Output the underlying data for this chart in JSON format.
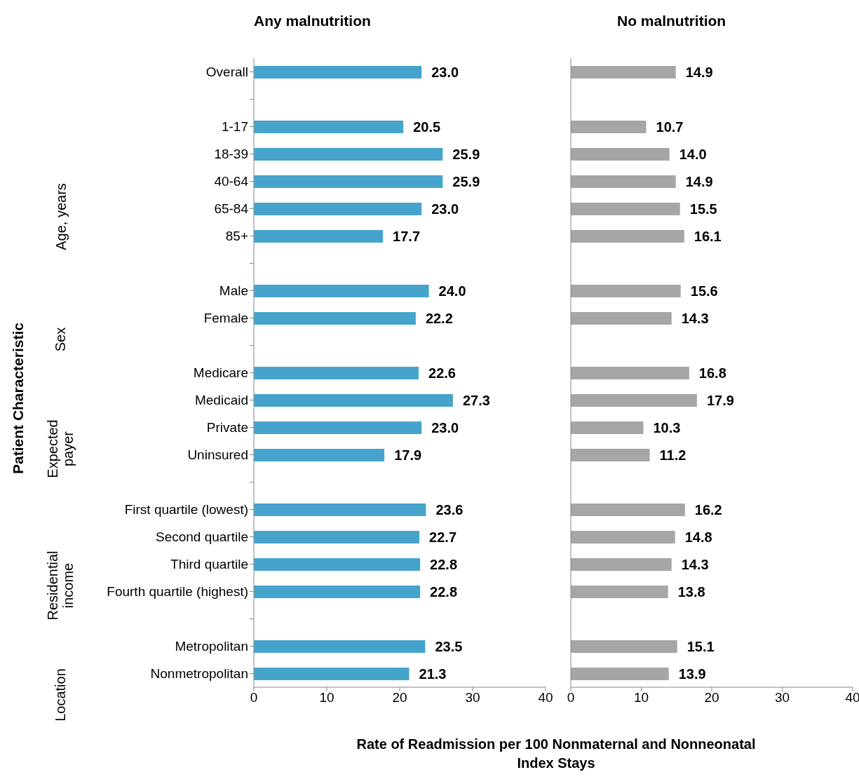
{
  "chart_data": [
    {
      "type": "bar",
      "orientation": "horizontal",
      "title": "Any malnutrition",
      "ylabel": "Patient Characteristic",
      "categories": [
        "Overall",
        null,
        "1-17",
        "18-39",
        "40-64",
        "65-84",
        "85+",
        null,
        "Male",
        "Female",
        null,
        "Medicare",
        "Medicaid",
        "Private",
        "Uninsured",
        null,
        "First quartile (lowest)",
        "Second quartile",
        "Third quartile",
        "Fourth quartile (highest)",
        null,
        "Metropolitan",
        "Nonmetropolitan"
      ],
      "values": [
        23.0,
        null,
        20.5,
        25.9,
        25.9,
        23.0,
        17.7,
        null,
        24.0,
        22.2,
        null,
        22.6,
        27.3,
        23.0,
        17.9,
        null,
        23.6,
        22.7,
        22.8,
        22.8,
        null,
        23.5,
        21.3
      ],
      "value_labels": [
        "23.0",
        null,
        "20.5",
        "25.9",
        "25.9",
        "23.0",
        "17.7",
        null,
        "24.0",
        "22.2",
        null,
        "22.6",
        "27.3",
        "23.0",
        "17.9",
        null,
        "23.6",
        "22.7",
        "22.8",
        "22.8",
        null,
        "23.5",
        "21.3"
      ],
      "color": "#46a4cc",
      "xlim": [
        0,
        40
      ],
      "xticks": [
        0,
        10,
        20,
        30,
        40
      ],
      "annotations": [
        "Age, years",
        "Sex",
        "Expected payer",
        "Residential income",
        "Location"
      ]
    },
    {
      "type": "bar",
      "orientation": "horizontal",
      "title": "No malnutrition",
      "xlabel": "Rate of Readmission per 100 Nonmaternal and Nonneonatal Index Stays",
      "categories": [
        null,
        null,
        null,
        null,
        null,
        null,
        null,
        null,
        null,
        null,
        null,
        null,
        null,
        null,
        null,
        null,
        null,
        null,
        null,
        null,
        null,
        null,
        null
      ],
      "values": [
        14.9,
        null,
        10.7,
        14.0,
        14.9,
        15.5,
        16.1,
        null,
        15.6,
        14.3,
        null,
        16.8,
        17.9,
        10.3,
        11.2,
        null,
        16.2,
        14.8,
        14.3,
        13.8,
        null,
        15.1,
        13.9
      ],
      "value_labels": [
        "14.9",
        null,
        "10.7",
        "14.0",
        "14.9",
        "15.5",
        "16.1",
        null,
        "15.6",
        "14.3",
        null,
        "16.8",
        "17.9",
        "10.3",
        "11.2",
        null,
        "16.2",
        "14.8",
        "14.3",
        "13.8",
        null,
        "15.1",
        "13.9"
      ],
      "color": "#a6a6a6",
      "xlim": [
        0,
        40
      ],
      "xticks": [
        0,
        10,
        20,
        30,
        40
      ],
      "tick_labels": "x"
    }
  ]
}
